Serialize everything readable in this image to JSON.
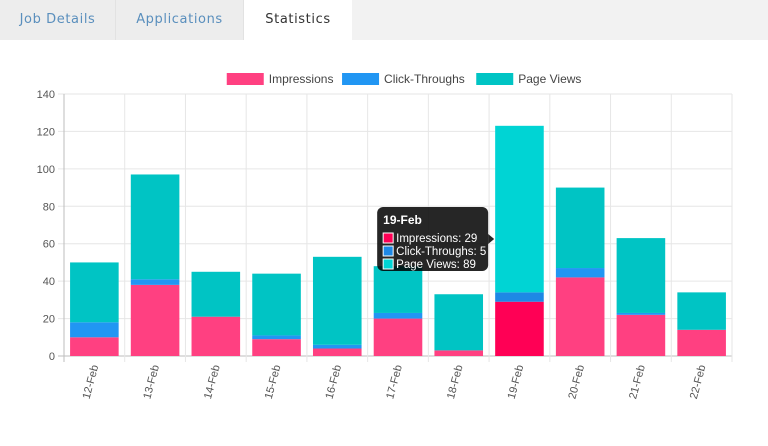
{
  "tabs": [
    {
      "label": "Job Details"
    },
    {
      "label": "Applications"
    },
    {
      "label": "Statistics",
      "active": true
    }
  ],
  "chart_data": {
    "type": "bar",
    "stacked": true,
    "categories": [
      "12-Feb",
      "13-Feb",
      "14-Feb",
      "15-Feb",
      "16-Feb",
      "17-Feb",
      "18-Feb",
      "19-Feb",
      "20-Feb",
      "21-Feb",
      "22-Feb"
    ],
    "series": [
      {
        "name": "Impressions",
        "color": "#ff4081",
        "values": [
          10,
          38,
          21,
          9,
          4,
          20,
          3,
          29,
          42,
          22,
          14
        ]
      },
      {
        "name": "Click-Throughs",
        "color": "#2196f3",
        "values": [
          8,
          3,
          0,
          2,
          2,
          3,
          0,
          5,
          5,
          1,
          0
        ]
      },
      {
        "name": "Page Views",
        "color": "#00c4c4",
        "values": [
          32,
          56,
          24,
          33,
          47,
          25,
          30,
          89,
          43,
          40,
          20
        ]
      }
    ],
    "ylim": [
      0,
      140
    ],
    "yticks": [
      0,
      20,
      40,
      60,
      80,
      100,
      120,
      140
    ],
    "grid": true,
    "legend": "top",
    "tooltip": {
      "title": "19-Feb",
      "lines": [
        "Impressions: 29",
        "Click-Throughs: 5",
        "Page Views: 89"
      ],
      "highlight_colors": [
        "#ff0055",
        "#1e88e5",
        "#00d4d4"
      ]
    }
  }
}
